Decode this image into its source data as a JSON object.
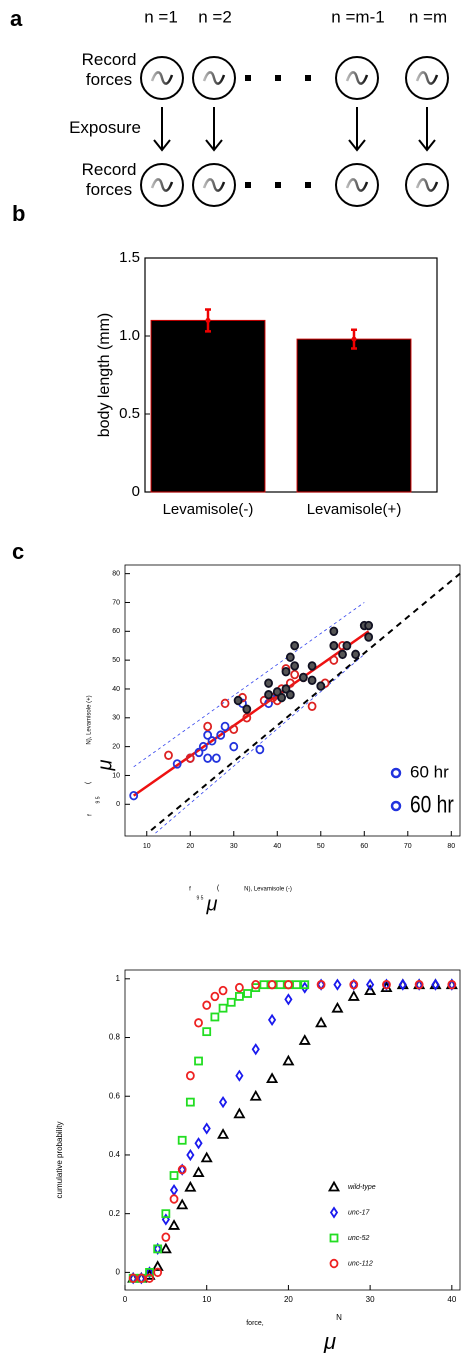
{
  "panel_a": {
    "label": "a",
    "columns": [
      "n =1",
      "n =2",
      "n =m-1",
      "n =m"
    ],
    "rows": [
      "Record forces",
      "Exposure",
      "Record forces"
    ]
  },
  "chart_data": [
    {
      "type": "bar",
      "label": "b",
      "ylabel": "body length (mm)",
      "categories": [
        "Levamisole(-)",
        "Levamisole(+)"
      ],
      "values": [
        1.1,
        0.98
      ],
      "errors": [
        0.07,
        0.06
      ],
      "color": "#000000",
      "edge_color": "#cc0000",
      "error_color": "#ee0000",
      "ylim": [
        0,
        1.5
      ],
      "yticks": [
        0,
        0.5,
        {
          "value": 1,
          "label": "1.0"
        },
        1.5
      ]
    },
    {
      "type": "scatter",
      "label": "c",
      "xlabel": [
        "f",
        "9 5",
        "(",
        "N), Levamisole (-)",
        "μ"
      ],
      "ylabel": [
        "f",
        "9 5",
        "(",
        "N), Levamisole (+)",
        "μ"
      ],
      "xlim": [
        5,
        82
      ],
      "ylim": [
        -11,
        83
      ],
      "xticks": [
        10,
        20,
        30,
        40,
        50,
        60,
        70,
        80
      ],
      "yticks": [
        0,
        10,
        20,
        30,
        40,
        50,
        60,
        70,
        80
      ],
      "series": [
        {
          "color": "#2233dd",
          "x": [
            7,
            17,
            20,
            22,
            23,
            24,
            24,
            25,
            26,
            27,
            28,
            30,
            32,
            36,
            38,
            40
          ],
          "values": [
            3,
            14,
            16,
            18,
            20,
            24,
            16,
            22,
            16,
            24,
            27,
            20,
            35,
            19,
            35,
            38
          ]
        },
        {
          "color": "#dd2222",
          "x": [
            15,
            20,
            24,
            28,
            30,
            32,
            33,
            37,
            39,
            40,
            41,
            42,
            43,
            44,
            46,
            48,
            51,
            53,
            55
          ],
          "values": [
            17,
            16,
            27,
            35,
            26,
            37,
            30,
            36,
            37,
            36,
            40,
            47,
            42,
            45,
            44,
            34,
            42,
            50,
            55
          ]
        },
        {
          "color": "#111122",
          "x": [
            31,
            33,
            38,
            38,
            40,
            41,
            42,
            42,
            43,
            43,
            44,
            44,
            46,
            48,
            48,
            50,
            53,
            53,
            55,
            56,
            58,
            60,
            61,
            61
          ],
          "values": [
            36,
            33,
            38,
            42,
            39,
            37,
            40,
            46,
            38,
            51,
            55,
            48,
            44,
            43,
            48,
            41,
            55,
            60,
            52,
            55,
            52,
            62,
            62,
            58
          ]
        }
      ],
      "lines": [
        {
          "color": "#ee1111",
          "dash": "none",
          "x": [
            7,
            61
          ],
          "y": [
            3,
            60
          ]
        },
        {
          "color": "#000000",
          "dash": "6,5",
          "x": [
            11,
            82
          ],
          "y": [
            -9,
            80
          ]
        },
        {
          "color": "#3344ee",
          "dash": "3,3",
          "x": [
            7,
            60
          ],
          "y": [
            13,
            70
          ]
        },
        {
          "color": "#3344ee",
          "dash": "3,3",
          "x": [
            12,
            60
          ],
          "y": [
            -10,
            52
          ]
        }
      ],
      "legend_entries": [
        {
          "label": "60 hr",
          "color": "#2233dd"
        },
        {
          "label": "60 hr",
          "color": "#2233dd"
        }
      ]
    },
    {
      "type": "scatter",
      "ylabel": "cumulative probability",
      "xlabel": [
        "force,",
        "μ",
        "N"
      ],
      "xlim": [
        0,
        41
      ],
      "ylim": [
        -0.06,
        1.03
      ],
      "xticks": [
        0,
        10,
        20,
        30,
        40
      ],
      "yticks": [
        0,
        0.2,
        0.4,
        0.6,
        0.8,
        1
      ],
      "legend": "lower right",
      "series": [
        {
          "name": "wild-type",
          "color": "#000000",
          "marker": "triangle",
          "x": [
            1,
            2,
            3,
            4,
            5,
            6,
            7,
            8,
            9,
            10,
            12,
            14,
            16,
            18,
            20,
            22,
            24,
            26,
            28,
            30,
            32,
            34,
            36,
            38,
            40
          ],
          "values": [
            -0.02,
            -0.02,
            -0.01,
            0.02,
            0.08,
            0.16,
            0.23,
            0.29,
            0.34,
            0.39,
            0.47,
            0.54,
            0.6,
            0.66,
            0.72,
            0.79,
            0.85,
            0.9,
            0.94,
            0.96,
            0.97,
            0.98,
            0.98,
            0.98,
            0.98
          ]
        },
        {
          "name": "unc-17",
          "color": "#1a1aee",
          "marker": "diamond",
          "x": [
            1,
            2,
            3,
            4,
            5,
            6,
            7,
            8,
            9,
            10,
            12,
            14,
            16,
            18,
            20,
            22,
            24,
            26,
            28,
            30,
            32,
            34,
            36,
            38,
            40
          ],
          "values": [
            -0.02,
            -0.02,
            0,
            0.08,
            0.18,
            0.28,
            0.35,
            0.4,
            0.44,
            0.49,
            0.58,
            0.67,
            0.76,
            0.86,
            0.93,
            0.97,
            0.98,
            0.98,
            0.98,
            0.98,
            0.98,
            0.98,
            0.98,
            0.98,
            0.98
          ]
        },
        {
          "name": "unc-52",
          "color": "#22dd22",
          "marker": "square",
          "x": [
            1,
            2,
            3,
            4,
            5,
            6,
            7,
            8,
            9,
            10,
            11,
            12,
            13,
            14,
            15,
            16,
            17,
            18,
            19,
            20,
            21,
            22
          ],
          "values": [
            -0.02,
            -0.02,
            0,
            0.08,
            0.2,
            0.33,
            0.45,
            0.58,
            0.72,
            0.82,
            0.87,
            0.9,
            0.92,
            0.94,
            0.95,
            0.97,
            0.98,
            0.98,
            0.98,
            0.98,
            0.98,
            0.98
          ]
        },
        {
          "name": "unc-112",
          "color": "#ee2222",
          "marker": "circle",
          "x": [
            1,
            2,
            3,
            4,
            5,
            6,
            7,
            8,
            9,
            10,
            11,
            12,
            14,
            16,
            18,
            20,
            24,
            28,
            32,
            36,
            40
          ],
          "values": [
            -0.02,
            -0.02,
            -0.02,
            0,
            0.12,
            0.25,
            0.35,
            0.67,
            0.85,
            0.91,
            0.94,
            0.96,
            0.97,
            0.98,
            0.98,
            0.98,
            0.98,
            0.98,
            0.98,
            0.98,
            0.98
          ]
        }
      ]
    }
  ]
}
